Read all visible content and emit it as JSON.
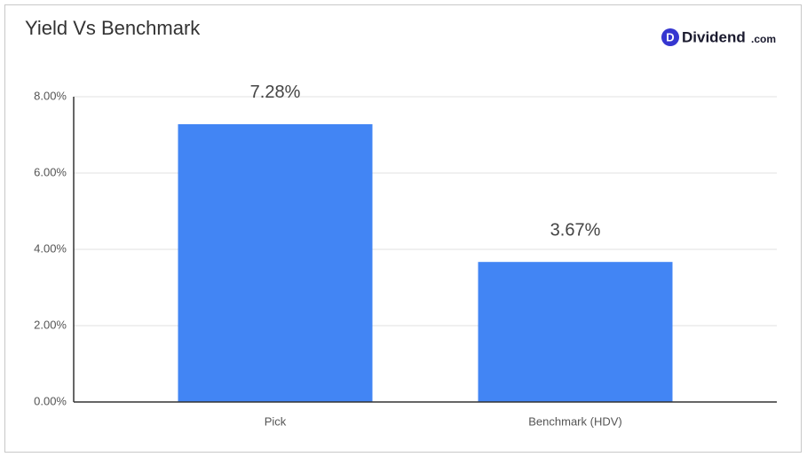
{
  "chart_data": {
    "type": "bar",
    "title": "Yield Vs Benchmark",
    "logo": {
      "icon": "D",
      "name": "Dividend",
      "suffix": ".com"
    },
    "categories": [
      "Pick",
      "Benchmark (HDV)"
    ],
    "values": [
      7.28,
      3.67
    ],
    "value_labels": [
      "7.28%",
      "3.67%"
    ],
    "color": "#4285f4",
    "ylim": [
      0,
      8
    ],
    "yticks": [
      {
        "value": 0,
        "label": "0.00%"
      },
      {
        "value": 2,
        "label": "2.00%"
      },
      {
        "value": 4,
        "label": "4.00%"
      },
      {
        "value": 6,
        "label": "6.00%"
      },
      {
        "value": 8,
        "label": "8.00%"
      }
    ],
    "grid": true
  }
}
